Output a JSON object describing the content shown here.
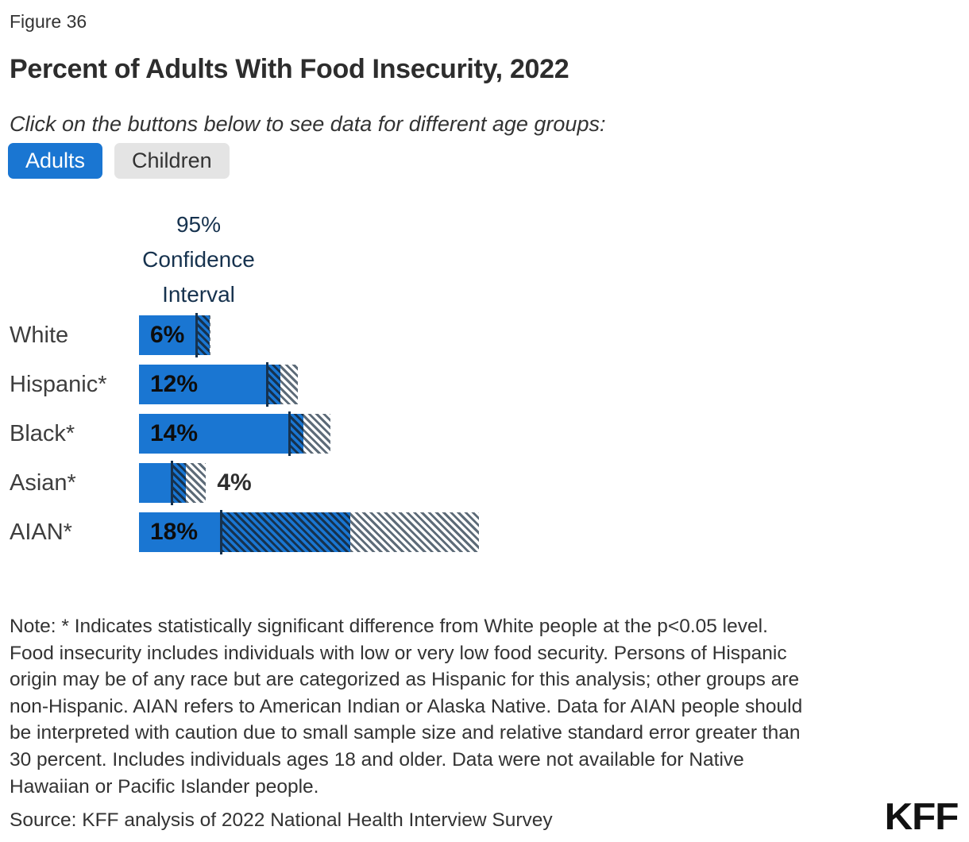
{
  "figure_label": "Figure 36",
  "title": "Percent of Adults With Food Insecurity, 2022",
  "instruction": "Click on the buttons below to see data for different age groups:",
  "buttons": [
    {
      "label": "Adults",
      "selected": true
    },
    {
      "label": "Children",
      "selected": false
    }
  ],
  "colors": {
    "bar_blue": "#1a76d2",
    "ci_navy": "#16324e",
    "ci_gray": "#5d6b78",
    "inactive_button_bg": "#e4e4e4",
    "text_dark": "#333333"
  },
  "chart_data": {
    "type": "bar",
    "orientation": "horizontal",
    "title": "Percent of Adults With Food Insecurity, 2022",
    "ci_header": "95% Confidence Interval",
    "ci_header_lines": [
      "95%",
      "Confidence",
      "Interval"
    ],
    "categories": [
      "White",
      "Hispanic*",
      "Black*",
      "Asian*",
      "AIAN*"
    ],
    "values": [
      6,
      12,
      14,
      4,
      18
    ],
    "value_labels": [
      "6%",
      "12%",
      "14%",
      "4%",
      "18%"
    ],
    "ci_lower": [
      4.9,
      10.9,
      12.8,
      2.8,
      7.0
    ],
    "ci_upper": [
      6.1,
      13.5,
      16.3,
      5.7,
      28.9
    ],
    "label_outside": [
      false,
      false,
      false,
      true,
      false
    ],
    "xlim": [
      0,
      30
    ],
    "grid": false,
    "legend": "none"
  },
  "note_lines": [
    "Note: * Indicates statistically significant difference from White people at the p<0.05 level.",
    "Food insecurity includes individuals with low or very low food security. Persons of Hispanic",
    "origin may be of any race but are categorized as Hispanic for this analysis; other groups are",
    "non-Hispanic. AIAN refers to American Indian or Alaska Native. Data for AIAN people should",
    "be interpreted with caution due to small sample size and relative standard error greater than",
    "30 percent. Includes individuals ages 18 and older. Data were not available for Native",
    "Hawaiian or Pacific Islander people."
  ],
  "source": "Source: KFF analysis of 2022 National Health Interview Survey",
  "logo": "KFF"
}
